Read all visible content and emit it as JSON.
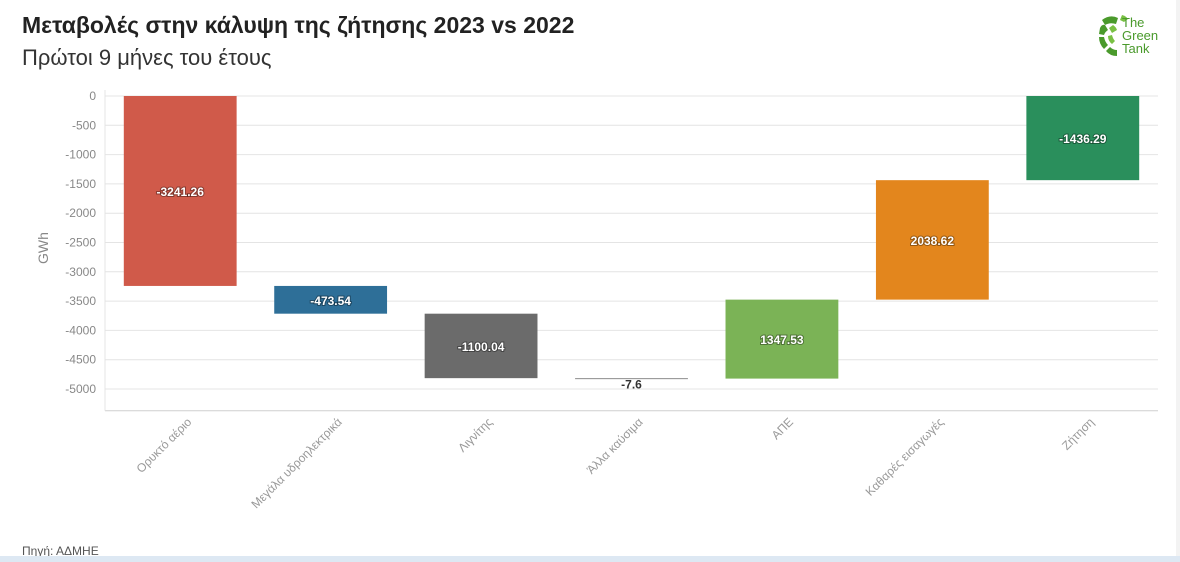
{
  "header": {
    "title": "Μεταβολές στην κάλυψη της ζήτησης 2023 vs 2022",
    "subtitle": "Πρώτοι 9 μήνες του έτους"
  },
  "logo": {
    "icon": "green-leaf-logo-icon",
    "line1": "The",
    "line2": "Green",
    "line3": "Tank"
  },
  "footer": {
    "source": "Πηγή: ΑΔΜΗΕ"
  },
  "chart_data": {
    "type": "waterfall",
    "ylabel": "GWh",
    "ylim": [
      -5200,
      0
    ],
    "yticks": [
      0,
      -500,
      -1000,
      -1500,
      -2000,
      -2500,
      -3000,
      -3500,
      -4000,
      -4500,
      -5000
    ],
    "grid": true,
    "categories": [
      "Ορυκτό αέριο",
      "Μεγάλα υδροηλεκτρικά",
      "Λιγνίτης",
      "Άλλα καύσιμα",
      "ΑΠΕ",
      "Καθαρές εισαγωγές",
      "Ζήτηση"
    ],
    "values": [
      -3241.26,
      -473.54,
      -1100.04,
      -7.6,
      1347.53,
      2038.62,
      -1436.29
    ],
    "value_labels": [
      "-3241.26",
      "-473.54",
      "-1100.04",
      "-7.6",
      "1347.53",
      "2038.62",
      "-1436.29"
    ],
    "total_index": 6,
    "colors": [
      "#d05a4a",
      "#2e6f98",
      "#6b6b6b",
      "#8a8a8a",
      "#7bb356",
      "#e3861d",
      "#2a8f5c"
    ]
  }
}
